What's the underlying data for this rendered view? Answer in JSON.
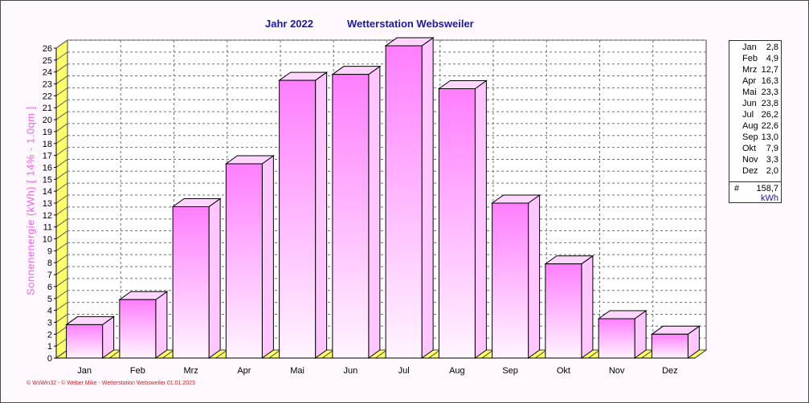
{
  "header": {
    "year_label": "Jahr  2022",
    "station_label": "Wetterstation Websweiler"
  },
  "footer_text": "© WsWin32  -  © Weber Mike  -  Wetterstation Websweiler  01.01.2023",
  "legend": {
    "rows": [
      {
        "month": "Jan",
        "value": "2,8"
      },
      {
        "month": "Feb",
        "value": "4,9"
      },
      {
        "month": "Mrz",
        "value": "12,7"
      },
      {
        "month": "Apr",
        "value": "16,3"
      },
      {
        "month": "Mai",
        "value": "23,3"
      },
      {
        "month": "Jun",
        "value": "23,8"
      },
      {
        "month": "Jul",
        "value": "26,2"
      },
      {
        "month": "Aug",
        "value": "22,6"
      },
      {
        "month": "Sep",
        "value": "13,0"
      },
      {
        "month": "Okt",
        "value": "7,9"
      },
      {
        "month": "Nov",
        "value": "3,3"
      },
      {
        "month": "Dez",
        "value": "2,0"
      }
    ],
    "total_symbol": "#",
    "total": "158,7",
    "unit": "kWh"
  },
  "colors": {
    "bar_top": "#ff7eff",
    "bar_bottom": "#fff5ff",
    "bar_side": "#ffc6ff",
    "bar_cap": "#ffd6ff",
    "floor": "#ffff6e",
    "title": "#1a1aa0",
    "ylabel": "#ee66ee",
    "grid": "#707070"
  },
  "chart_data": {
    "type": "bar",
    "title": "Wetterstation Websweiler",
    "subtitle": "Jahr  2022",
    "xlabel": "",
    "ylabel": "Sonnenenergie   (kWh)     [ 14% - 1.0qm ]",
    "categories": [
      "Jan",
      "Feb",
      "Mrz",
      "Apr",
      "Mai",
      "Jun",
      "Jul",
      "Aug",
      "Sep",
      "Okt",
      "Nov",
      "Dez"
    ],
    "values": [
      2.8,
      4.9,
      12.7,
      16.3,
      23.3,
      23.8,
      26.2,
      22.6,
      13.0,
      7.9,
      3.3,
      2.0
    ],
    "ylim": [
      0,
      26
    ],
    "yticks": [
      "0",
      "1",
      "2",
      "3",
      "4",
      "5",
      "6",
      "7",
      "8",
      "9",
      "10",
      "11",
      "12",
      "13",
      "14",
      "15",
      "16",
      "17",
      "18",
      "19",
      "20",
      "21",
      "22",
      "23",
      "24",
      "25",
      "26"
    ],
    "grid": true,
    "legend_position": "right"
  }
}
